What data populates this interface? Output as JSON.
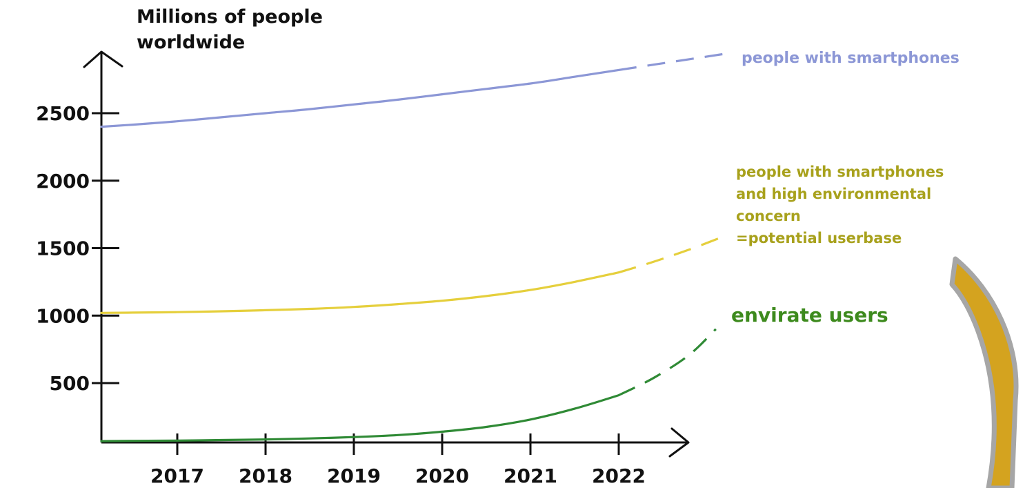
{
  "chart_data": {
    "type": "line",
    "title": "",
    "ylabel_lines": [
      "Millions of people",
      "worldwide"
    ],
    "xlabel": "",
    "x": [
      2016.1,
      2016.5,
      2017,
      2017.5,
      2018,
      2018.5,
      2019,
      2019.5,
      2020,
      2020.5,
      2021,
      2021.5,
      2022
    ],
    "x_ticks": [
      2017,
      2018,
      2019,
      2020,
      2021,
      2022
    ],
    "x_tick_labels": [
      "2017",
      "2018",
      "2019",
      "2020",
      "2021",
      "2022"
    ],
    "y_ticks": [
      500,
      1000,
      1500,
      2000,
      2500
    ],
    "y_tick_labels": [
      "500",
      "1000",
      "1500",
      "2000",
      "2500"
    ],
    "xlim": [
      2016.1,
      2022.8
    ],
    "ylim": [
      0,
      3000
    ],
    "grid": false,
    "series": [
      {
        "key": "smartphones",
        "color": "#8c97d6",
        "label_lines": [
          "people with smartphones"
        ],
        "values": [
          2400,
          2415,
          2440,
          2470,
          2500,
          2530,
          2565,
          2600,
          2640,
          2680,
          2720,
          2770,
          2820
        ],
        "projection": {
          "x": [
            2022,
            2022.4,
            2022.8,
            2023.2
          ],
          "y": [
            2820,
            2860,
            2900,
            2940
          ]
        }
      },
      {
        "key": "potential-userbase",
        "color": "#e5cf3c",
        "label_color": "#a8a11c",
        "label_lines": [
          "people with smartphones",
          "and high environmental",
          "concern",
          "=potential userbase"
        ],
        "values": [
          1020,
          1022,
          1026,
          1032,
          1040,
          1050,
          1064,
          1085,
          1110,
          1145,
          1190,
          1250,
          1320
        ],
        "projection": {
          "x": [
            2022,
            2022.4,
            2022.8,
            2023.2
          ],
          "y": [
            1320,
            1400,
            1490,
            1590
          ]
        }
      },
      {
        "key": "envirate-users",
        "color": "#2f8a35",
        "label_color": "#3d8a1d",
        "label_lines": [
          "envirate users"
        ],
        "values": [
          70,
          72,
          74,
          78,
          82,
          90,
          100,
          115,
          140,
          175,
          230,
          310,
          410
        ],
        "projection": {
          "x": [
            2022,
            2022.4,
            2022.8,
            2023.1
          ],
          "y": [
            410,
            540,
            710,
            900
          ]
        }
      }
    ],
    "decoration": {
      "arrow_fill": "#d4a31f",
      "arrow_stroke": "#a6a6a6"
    }
  }
}
